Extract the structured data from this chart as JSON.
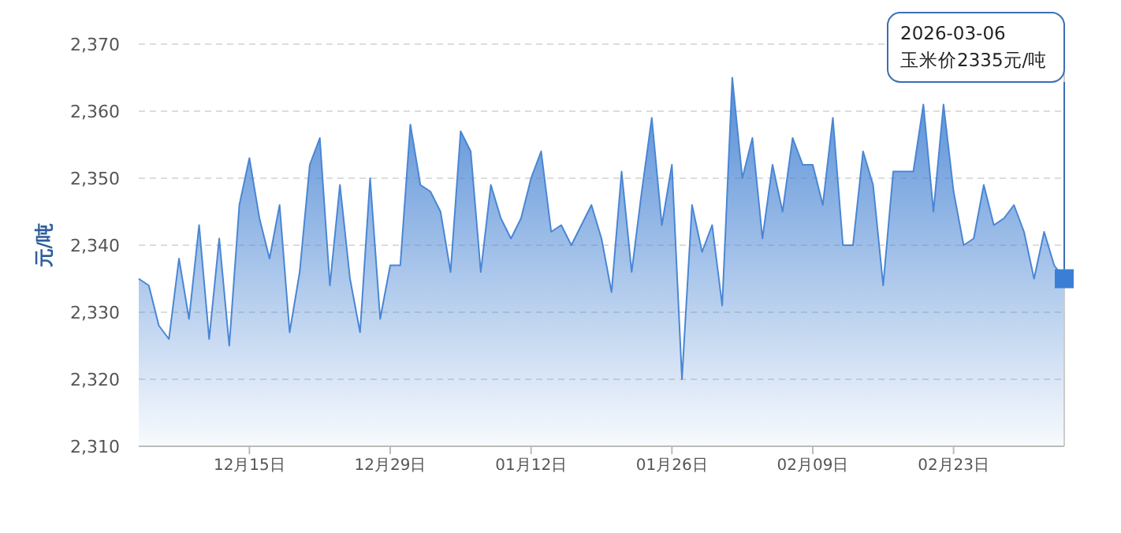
{
  "chart_data": {
    "type": "area",
    "ylabel": "元/吨",
    "x": [
      "2025-12-04",
      "2025-12-05",
      "2025-12-06",
      "2025-12-07",
      "2025-12-08",
      "2025-12-09",
      "2025-12-10",
      "2025-12-11",
      "2025-12-12",
      "2025-12-13",
      "2025-12-14",
      "2025-12-15",
      "2025-12-16",
      "2025-12-17",
      "2025-12-18",
      "2025-12-19",
      "2025-12-20",
      "2025-12-21",
      "2025-12-22",
      "2025-12-23",
      "2025-12-24",
      "2025-12-25",
      "2025-12-26",
      "2025-12-27",
      "2025-12-28",
      "2025-12-29",
      "2025-12-30",
      "2025-12-31",
      "2026-01-01",
      "2026-01-02",
      "2026-01-03",
      "2026-01-04",
      "2026-01-05",
      "2026-01-06",
      "2026-01-07",
      "2026-01-08",
      "2026-01-09",
      "2026-01-10",
      "2026-01-11",
      "2026-01-12",
      "2026-01-13",
      "2026-01-14",
      "2026-01-15",
      "2026-01-16",
      "2026-01-17",
      "2026-01-18",
      "2026-01-19",
      "2026-01-20",
      "2026-01-21",
      "2026-01-22",
      "2026-01-23",
      "2026-01-24",
      "2026-01-25",
      "2026-01-26",
      "2026-01-27",
      "2026-01-28",
      "2026-01-29",
      "2026-01-30",
      "2026-01-31",
      "2026-02-01",
      "2026-02-02",
      "2026-02-03",
      "2026-02-04",
      "2026-02-05",
      "2026-02-06",
      "2026-02-07",
      "2026-02-08",
      "2026-02-09",
      "2026-02-10",
      "2026-02-11",
      "2026-02-12",
      "2026-02-13",
      "2026-02-14",
      "2026-02-15",
      "2026-02-16",
      "2026-02-17",
      "2026-02-18",
      "2026-02-19",
      "2026-02-20",
      "2026-02-21",
      "2026-02-22",
      "2026-02-23",
      "2026-02-24",
      "2026-02-25",
      "2026-02-26",
      "2026-02-27",
      "2026-02-28",
      "2026-03-01",
      "2026-03-02",
      "2026-03-03",
      "2026-03-04",
      "2026-03-05",
      "2026-03-06"
    ],
    "series": [
      {
        "color": "#4a86d4",
        "values": [
          2335,
          2334,
          2328,
          2326,
          2338,
          2329,
          2343,
          2326,
          2341,
          2325,
          2346,
          2353,
          2344,
          2338,
          2346,
          2327,
          2336,
          2352,
          2356,
          2334,
          2349,
          2335,
          2327,
          2350,
          2329,
          2337,
          2337,
          2358,
          2349,
          2348,
          2345,
          2336,
          2357,
          2354,
          2336,
          2349,
          2344,
          2341,
          2344,
          2350,
          2354,
          2342,
          2343,
          2340,
          2343,
          2346,
          2341,
          2333,
          2351,
          2336,
          2348,
          2359,
          2343,
          2352,
          2320,
          2346,
          2339,
          2343,
          2331,
          2365,
          2350,
          2356,
          2341,
          2352,
          2345,
          2356,
          2352,
          2352,
          2346,
          2359,
          2340,
          2340,
          2354,
          2349,
          2334,
          2351,
          2351,
          2351,
          2361,
          2345,
          2361,
          2348,
          2340,
          2341,
          2349,
          2343,
          2344,
          2346,
          2342,
          2335,
          2342,
          2337,
          2335
        ]
      }
    ],
    "xlim": [
      "2025-12-04",
      "2026-03-06"
    ],
    "xticks": [
      {
        "value": "2025-12-15",
        "label": "12月15日"
      },
      {
        "value": "2025-12-29",
        "label": "12月29日"
      },
      {
        "value": "2026-01-12",
        "label": "01月12日"
      },
      {
        "value": "2026-01-26",
        "label": "01月26日"
      },
      {
        "value": "2026-02-09",
        "label": "02月09日"
      },
      {
        "value": "2026-02-23",
        "label": "02月23日"
      }
    ],
    "ylim": [
      2310,
      2370
    ],
    "yticks": [
      {
        "value": 2310,
        "label": "2,310"
      },
      {
        "value": 2320,
        "label": "2,320"
      },
      {
        "value": 2330,
        "label": "2,330"
      },
      {
        "value": 2340,
        "label": "2,340"
      },
      {
        "value": 2350,
        "label": "2,350"
      },
      {
        "value": 2360,
        "label": "2,360"
      },
      {
        "value": 2370,
        "label": "2,370"
      }
    ],
    "grid": "y",
    "annotations": [
      {
        "text": "2026-03-06\n玉米价2335元/吨",
        "x": "2026-03-06",
        "y": 2335
      }
    ]
  }
}
